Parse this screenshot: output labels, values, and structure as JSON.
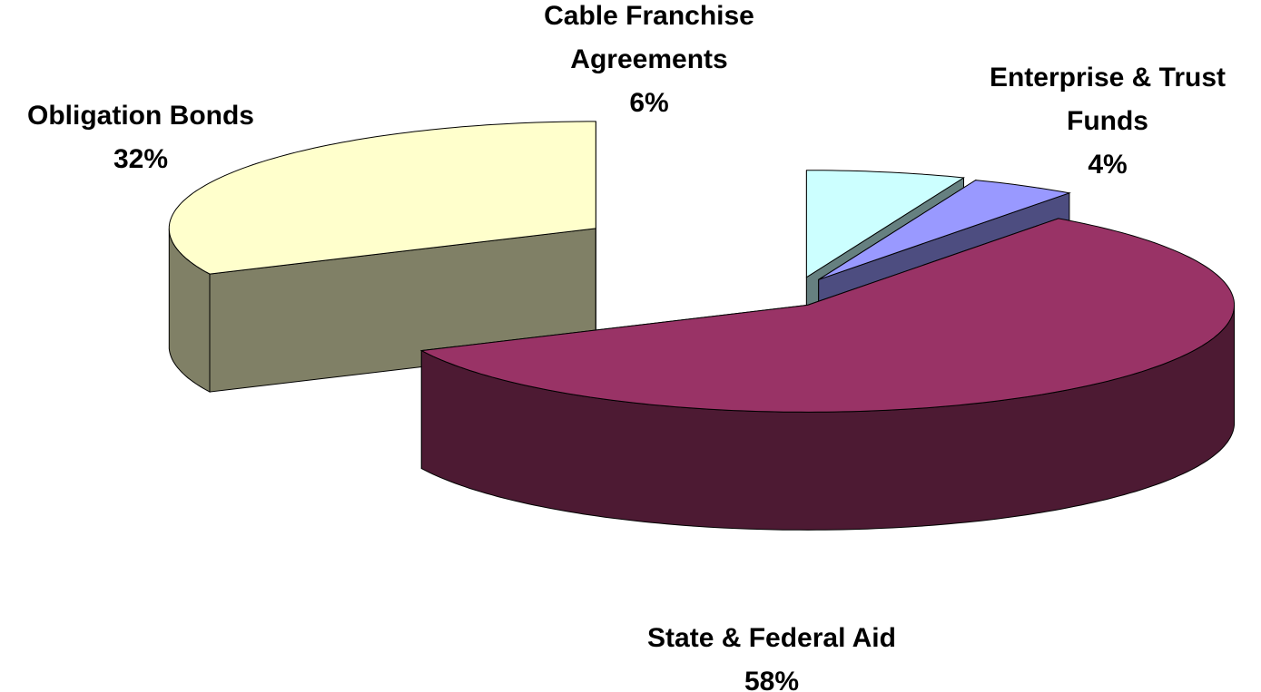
{
  "chart_data": {
    "type": "pie3d",
    "categories": [
      "Cable Franchise Agreements",
      "Enterprise & Trust Funds",
      "State & Federal Aid",
      "Obligation Bonds"
    ],
    "values": [
      6,
      4,
      58,
      32
    ],
    "value_labels": [
      "6%",
      "4%",
      "58%",
      "32%"
    ],
    "colors": [
      "#ccffff",
      "#9999ff",
      "#993366",
      "#ffffcc"
    ]
  }
}
